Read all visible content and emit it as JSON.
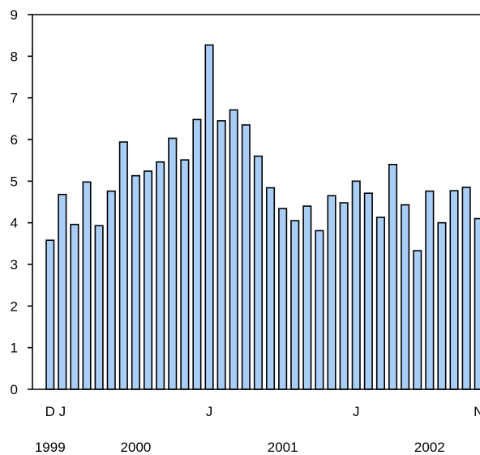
{
  "chart_data": {
    "type": "bar",
    "title": "",
    "xlabel": "",
    "ylabel": "",
    "ylim": [
      0,
      9
    ],
    "yticks": [
      0,
      1,
      2,
      3,
      4,
      5,
      6,
      7,
      8,
      9
    ],
    "grid": false,
    "legend": "none",
    "bar_color": "#a9cdf5",
    "month_tick_labels": [
      {
        "index": 0,
        "label": "D"
      },
      {
        "index": 1,
        "label": "J"
      },
      {
        "index": 13,
        "label": "J"
      },
      {
        "index": 25,
        "label": "J"
      },
      {
        "index": 35,
        "label": "N"
      }
    ],
    "year_labels": [
      {
        "index": 0,
        "label": "1999"
      },
      {
        "index": 7,
        "label": "2000"
      },
      {
        "index": 19,
        "label": "2001"
      },
      {
        "index": 31,
        "label": "2002"
      }
    ],
    "categories": [
      "1999-12",
      "2000-01",
      "2000-02",
      "2000-03",
      "2000-04",
      "2000-05",
      "2000-06",
      "2000-07",
      "2000-08",
      "2000-09",
      "2000-10",
      "2000-11",
      "2000-12",
      "2001-01",
      "2001-02",
      "2001-03",
      "2001-04",
      "2001-05",
      "2001-06",
      "2001-07",
      "2001-08",
      "2001-09",
      "2001-10",
      "2001-11",
      "2001-12",
      "2002-01",
      "2002-02",
      "2002-03",
      "2002-04",
      "2002-05",
      "2002-06",
      "2002-07",
      "2002-08",
      "2002-09",
      "2002-10",
      "2002-11"
    ],
    "values": [
      3.58,
      4.68,
      3.96,
      4.98,
      3.93,
      4.76,
      5.94,
      5.13,
      5.24,
      5.46,
      6.03,
      5.51,
      6.48,
      8.27,
      6.45,
      6.71,
      6.35,
      5.6,
      4.84,
      4.34,
      4.05,
      4.4,
      3.81,
      4.65,
      4.48,
      5.0,
      4.71,
      4.13,
      5.4,
      4.43,
      3.33,
      4.76,
      4.0,
      4.77,
      4.85,
      4.1
    ]
  }
}
